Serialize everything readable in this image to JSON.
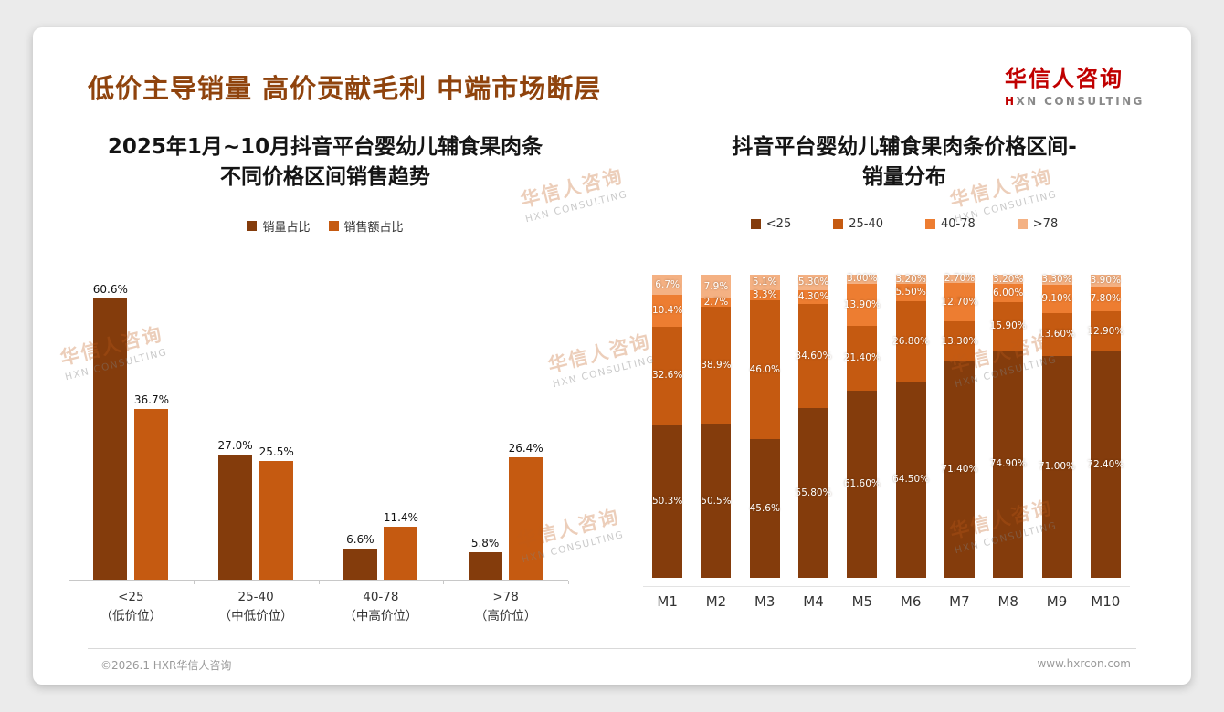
{
  "header": {
    "title": "低价主导销量 高价贡献毛利 中端市场断层",
    "logo": {
      "cn": "华信人咨询",
      "en_accent": "H",
      "en_rest": "XN CONSULTING"
    }
  },
  "watermark": {
    "cn": "华信人咨询",
    "en": "HXN CONSULTING"
  },
  "footer": {
    "copyright": "©2026.1 HXR华信人咨询",
    "website": "www.hxrcon.com"
  },
  "colors": {
    "title": "#8F430D",
    "logo_red": "#C00000",
    "series_dark_brown": "#843C0C",
    "series_orange": "#C55A11",
    "series_light_orange": "#ED7D31",
    "series_pale_orange": "#F4B183"
  },
  "chart_data": [
    {
      "type": "bar",
      "stacked": false,
      "title": "2025年1月~10月抖音平台婴幼儿辅食果肉条不同价格区间销售趋势",
      "title_lines": [
        "2025年1月~10月抖音平台婴幼儿辅食果肉条",
        "不同价格区间销售趋势"
      ],
      "legend_position": "top",
      "grid": false,
      "xlabel": "",
      "ylabel": "",
      "ylim": [
        0,
        65
      ],
      "categories": [
        {
          "label": "<25",
          "sub": "（低价位）"
        },
        {
          "label": "25-40",
          "sub": "（中低价位）"
        },
        {
          "label": "40-78",
          "sub": "（中高价位）"
        },
        {
          "label": ">78",
          "sub": "（高价位）"
        }
      ],
      "series": [
        {
          "name": "销量占比",
          "color": "#843C0C",
          "values": [
            60.6,
            27.0,
            6.6,
            5.8
          ],
          "labels": [
            "60.6%",
            "27.0%",
            "6.6%",
            "5.8%"
          ]
        },
        {
          "name": "销售额占比",
          "color": "#C55A11",
          "values": [
            36.7,
            25.5,
            11.4,
            26.4
          ],
          "labels": [
            "36.7%",
            "25.5%",
            "11.4%",
            "26.4%"
          ]
        }
      ]
    },
    {
      "type": "bar",
      "stacked": true,
      "title": "抖音平台婴幼儿辅食果肉条价格区间-销量分布",
      "title_lines": [
        "抖音平台婴幼儿辅食果肉条价格区间-",
        "销量分布"
      ],
      "legend_position": "top",
      "grid": false,
      "xlabel": "",
      "ylabel": "",
      "categories": [
        "M1",
        "M2",
        "M3",
        "M4",
        "M5",
        "M6",
        "M7",
        "M8",
        "M9",
        "M10"
      ],
      "series": [
        {
          "name": "<25",
          "color": "#843C0C",
          "values": [
            50.3,
            50.5,
            45.6,
            55.8,
            61.6,
            64.5,
            71.4,
            74.9,
            71.0,
            72.4
          ],
          "labels": [
            "50.3%",
            "50.5%",
            "45.6%",
            "55.80%",
            "61.60%",
            "64.50%",
            "71.40%",
            "74.90%",
            "71.00%",
            "72.40%"
          ]
        },
        {
          "name": "25-40",
          "color": "#C55A11",
          "values": [
            32.6,
            38.9,
            46.0,
            34.6,
            21.4,
            26.8,
            13.3,
            15.9,
            13.6,
            12.9
          ],
          "labels": [
            "32.6%",
            "38.9%",
            "46.0%",
            "34.60%",
            "21.40%",
            "26.80%",
            "13.30%",
            "15.90%",
            "13.60%",
            "12.90%"
          ]
        },
        {
          "name": "40-78",
          "color": "#ED7D31",
          "values": [
            10.4,
            2.7,
            3.3,
            4.3,
            13.9,
            5.5,
            12.7,
            6.0,
            9.1,
            7.8
          ],
          "labels": [
            "10.4%",
            "2.7%",
            "3.3%",
            "4.30%",
            "13.90%",
            "5.50%",
            "12.70%",
            "6.00%",
            "9.10%",
            "7.80%"
          ]
        },
        {
          "name": ">78",
          "color": "#F4B183",
          "values": [
            6.7,
            7.9,
            5.1,
            5.3,
            3.0,
            3.2,
            2.7,
            3.2,
            3.3,
            3.9
          ],
          "labels": [
            "6.7%",
            "7.9%",
            "5.1%",
            "5.30%",
            "3.00%",
            "3.20%",
            "2.70%",
            "3.20%",
            "3.30%",
            "3.90%"
          ]
        }
      ]
    }
  ]
}
